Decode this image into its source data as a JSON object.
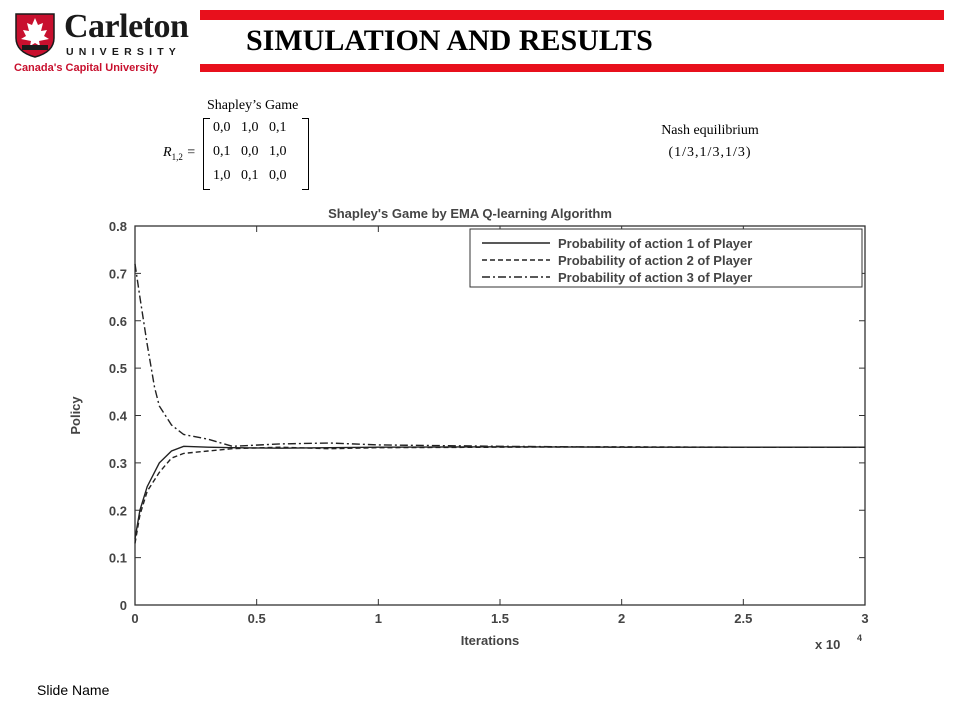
{
  "header": {
    "logo": {
      "name": "Carleton",
      "university": "UNIVERSITY",
      "tagline": "Canada's Capital University"
    },
    "title": "SIMULATION AND RESULTS"
  },
  "game": {
    "title": "Shapley’s Game",
    "matrix_label": "R",
    "matrix_subscript": "1,2",
    "matrix_rows": [
      [
        "0,0",
        "1,0",
        "0,1"
      ],
      [
        "0,1",
        "0,0",
        "1,0"
      ],
      [
        "1,0",
        "0,1",
        "0,0"
      ]
    ]
  },
  "nash": {
    "label": "Nash equilibrium",
    "value": "(1/3,1/3,1/3)"
  },
  "footer": {
    "slide_name": "Slide Name"
  },
  "colors": {
    "brand_red": "#e8101c",
    "tagline_red": "#c8102e"
  },
  "chart_data": {
    "type": "line",
    "title": "Shapley's Game by EMA Q-learning Algorithm",
    "xlabel": "Iterations",
    "ylabel": "Policy",
    "x_multiplier_label": "x 10",
    "x_multiplier_exp": "4",
    "xlim": [
      0,
      3
    ],
    "ylim": [
      0,
      0.8
    ],
    "xticks": [
      "0",
      "0.5",
      "1",
      "1.5",
      "2",
      "2.5",
      "3"
    ],
    "yticks": [
      "0",
      "0.1",
      "0.2",
      "0.3",
      "0.4",
      "0.5",
      "0.6",
      "0.7",
      "0.8"
    ],
    "grid": false,
    "legend_position": "top-right",
    "series": [
      {
        "name": "Probability of action 1 of Player",
        "dash": "solid",
        "x": [
          0,
          0.02,
          0.05,
          0.1,
          0.15,
          0.2,
          0.3,
          0.4,
          0.6,
          0.8,
          1.0,
          1.5,
          2.0,
          2.5,
          3.0
        ],
        "y": [
          0.14,
          0.2,
          0.25,
          0.3,
          0.325,
          0.335,
          0.333,
          0.332,
          0.331,
          0.332,
          0.333,
          0.334,
          0.333,
          0.333,
          0.333
        ]
      },
      {
        "name": "Probability of action 2 of Player",
        "dash": "dashed",
        "x": [
          0,
          0.02,
          0.05,
          0.1,
          0.15,
          0.2,
          0.3,
          0.4,
          0.6,
          0.8,
          1.0,
          1.5,
          2.0,
          2.5,
          3.0
        ],
        "y": [
          0.13,
          0.19,
          0.24,
          0.28,
          0.31,
          0.32,
          0.325,
          0.33,
          0.333,
          0.33,
          0.332,
          0.333,
          0.334,
          0.333,
          0.333
        ]
      },
      {
        "name": "Probability of action 3 of Player",
        "dash": "dashdot",
        "x": [
          0,
          0.02,
          0.05,
          0.08,
          0.1,
          0.15,
          0.2,
          0.25,
          0.3,
          0.4,
          0.6,
          0.8,
          1.0,
          1.5,
          2.0,
          2.5,
          3.0
        ],
        "y": [
          0.72,
          0.65,
          0.55,
          0.46,
          0.42,
          0.38,
          0.36,
          0.355,
          0.35,
          0.335,
          0.34,
          0.342,
          0.338,
          0.335,
          0.333,
          0.333,
          0.333
        ]
      }
    ]
  }
}
